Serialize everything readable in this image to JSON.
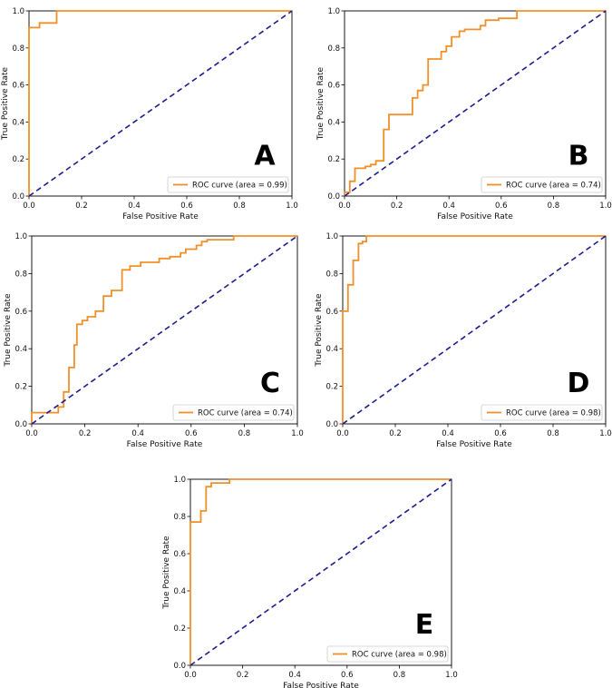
{
  "colors": {
    "roc": "#f0902a",
    "chance": "#1c1c8f",
    "frame": "#000000",
    "legend_border": "#cccccc"
  },
  "chart_data": [
    {
      "type": "line",
      "panel_label": "A",
      "xlabel": "False Positive Rate",
      "ylabel": "True Positive Rate",
      "xlim": [
        0,
        1
      ],
      "ylim": [
        0,
        1
      ],
      "xticks": [
        "0.0",
        "0.2",
        "0.4",
        "0.6",
        "0.8",
        "1.0"
      ],
      "yticks": [
        "0.0",
        "0.2",
        "0.4",
        "0.6",
        "0.8",
        "1.0"
      ],
      "legend": "ROC curve (area = 0.99)",
      "legend_loc": "lower-right",
      "grid": false,
      "series": [
        {
          "name": "ROC curve (area = 0.99)",
          "role": "roc",
          "x": [
            0,
            0,
            0.04,
            0.04,
            0.105,
            0.105,
            1
          ],
          "y": [
            0,
            0.91,
            0.91,
            0.935,
            0.935,
            1,
            1
          ]
        },
        {
          "role": "chance",
          "x": [
            0,
            1
          ],
          "y": [
            0,
            1
          ]
        }
      ]
    },
    {
      "type": "line",
      "panel_label": "B",
      "xlabel": "False Positive Rate",
      "ylabel": "True Positive Rate",
      "xlim": [
        0,
        1
      ],
      "ylim": [
        0,
        1
      ],
      "xticks": [
        "0.0",
        "0.2",
        "0.4",
        "0.6",
        "0.8",
        "1.0"
      ],
      "yticks": [
        "0.0",
        "0.2",
        "0.4",
        "0.6",
        "0.8",
        "1.0"
      ],
      "legend": "ROC curve (area = 0.74)",
      "legend_loc": "lower-right",
      "grid": false,
      "series": [
        {
          "name": "ROC curve (area = 0.74)",
          "role": "roc",
          "x": [
            0,
            0,
            0.02,
            0.02,
            0.04,
            0.04,
            0.08,
            0.08,
            0.1,
            0.1,
            0.12,
            0.12,
            0.15,
            0.15,
            0.17,
            0.17,
            0.26,
            0.26,
            0.28,
            0.28,
            0.3,
            0.3,
            0.32,
            0.32,
            0.37,
            0.37,
            0.39,
            0.39,
            0.41,
            0.41,
            0.44,
            0.44,
            0.46,
            0.46,
            0.52,
            0.52,
            0.54,
            0.54,
            0.59,
            0.59,
            0.66,
            0.66,
            1
          ],
          "y": [
            0,
            0.02,
            0.02,
            0.08,
            0.08,
            0.15,
            0.15,
            0.16,
            0.16,
            0.17,
            0.17,
            0.19,
            0.19,
            0.36,
            0.36,
            0.44,
            0.44,
            0.53,
            0.53,
            0.57,
            0.57,
            0.6,
            0.6,
            0.74,
            0.74,
            0.78,
            0.78,
            0.81,
            0.81,
            0.86,
            0.86,
            0.89,
            0.89,
            0.9,
            0.9,
            0.92,
            0.92,
            0.95,
            0.95,
            0.96,
            0.96,
            1,
            1
          ]
        },
        {
          "role": "chance",
          "x": [
            0,
            1
          ],
          "y": [
            0,
            1
          ]
        }
      ]
    },
    {
      "type": "line",
      "panel_label": "C",
      "xlabel": "False Positive Rate",
      "ylabel": "True Positive Rate",
      "xlim": [
        0,
        1
      ],
      "ylim": [
        0,
        1
      ],
      "xticks": [
        "0.0",
        "0.2",
        "0.4",
        "0.6",
        "0.8",
        "1.0"
      ],
      "yticks": [
        "0.0",
        "0.2",
        "0.4",
        "0.6",
        "0.8",
        "1.0"
      ],
      "legend": "ROC curve (area = 0.74)",
      "legend_loc": "lower-right",
      "grid": false,
      "series": [
        {
          "name": "ROC curve (area = 0.74)",
          "role": "roc",
          "x": [
            0,
            0,
            0.1,
            0.1,
            0.12,
            0.12,
            0.14,
            0.14,
            0.16,
            0.16,
            0.17,
            0.17,
            0.19,
            0.19,
            0.21,
            0.21,
            0.24,
            0.24,
            0.27,
            0.27,
            0.3,
            0.3,
            0.34,
            0.34,
            0.37,
            0.37,
            0.41,
            0.41,
            0.48,
            0.48,
            0.52,
            0.52,
            0.56,
            0.56,
            0.58,
            0.58,
            0.62,
            0.62,
            0.64,
            0.64,
            0.66,
            0.66,
            0.76,
            0.76,
            1
          ],
          "y": [
            0,
            0.06,
            0.06,
            0.09,
            0.09,
            0.17,
            0.17,
            0.3,
            0.3,
            0.42,
            0.42,
            0.53,
            0.53,
            0.55,
            0.55,
            0.57,
            0.57,
            0.6,
            0.6,
            0.68,
            0.68,
            0.71,
            0.71,
            0.82,
            0.82,
            0.84,
            0.84,
            0.86,
            0.86,
            0.88,
            0.88,
            0.89,
            0.89,
            0.91,
            0.91,
            0.93,
            0.93,
            0.95,
            0.95,
            0.97,
            0.97,
            0.98,
            0.98,
            1,
            1
          ]
        },
        {
          "role": "chance",
          "x": [
            0,
            1
          ],
          "y": [
            0,
            1
          ]
        }
      ]
    },
    {
      "type": "line",
      "panel_label": "D",
      "xlabel": "False Positive Rate",
      "ylabel": "True Positive Rate",
      "xlim": [
        0,
        1
      ],
      "ylim": [
        0,
        1
      ],
      "xticks": [
        "0.0",
        "0.2",
        "0.4",
        "0.6",
        "0.8",
        "1.0"
      ],
      "yticks": [
        "0.0",
        "0.2",
        "0.4",
        "0.6",
        "0.8",
        "1.0"
      ],
      "legend": "ROC curve (area = 0.98)",
      "legend_loc": "lower-right",
      "grid": false,
      "series": [
        {
          "name": "ROC curve (area = 0.98)",
          "role": "roc",
          "x": [
            0,
            0,
            0.02,
            0.02,
            0.04,
            0.04,
            0.06,
            0.06,
            0.075,
            0.075,
            0.09,
            0.09,
            1
          ],
          "y": [
            0,
            0.6,
            0.6,
            0.74,
            0.74,
            0.87,
            0.87,
            0.96,
            0.96,
            0.97,
            0.97,
            1,
            1
          ]
        },
        {
          "role": "chance",
          "x": [
            0,
            1
          ],
          "y": [
            0,
            1
          ]
        }
      ]
    },
    {
      "type": "line",
      "panel_label": "E",
      "xlabel": "False Positive Rate",
      "ylabel": "True Positive Rate",
      "xlim": [
        0,
        1
      ],
      "ylim": [
        0,
        1
      ],
      "xticks": [
        "0.0",
        "0.2",
        "0.4",
        "0.6",
        "0.8",
        "1.0"
      ],
      "yticks": [
        "0.0",
        "0.2",
        "0.4",
        "0.6",
        "0.8",
        "1.0"
      ],
      "legend": "ROC curve (area = 0.98)",
      "legend_loc": "lower-right",
      "grid": false,
      "series": [
        {
          "name": "ROC curve (area = 0.98)",
          "role": "roc",
          "x": [
            0,
            0,
            0.04,
            0.04,
            0.06,
            0.06,
            0.08,
            0.08,
            0.15,
            0.15,
            1
          ],
          "y": [
            0,
            0.77,
            0.77,
            0.83,
            0.83,
            0.96,
            0.96,
            0.98,
            0.98,
            1,
            1
          ]
        },
        {
          "role": "chance",
          "x": [
            0,
            1
          ],
          "y": [
            0,
            1
          ]
        }
      ]
    }
  ]
}
